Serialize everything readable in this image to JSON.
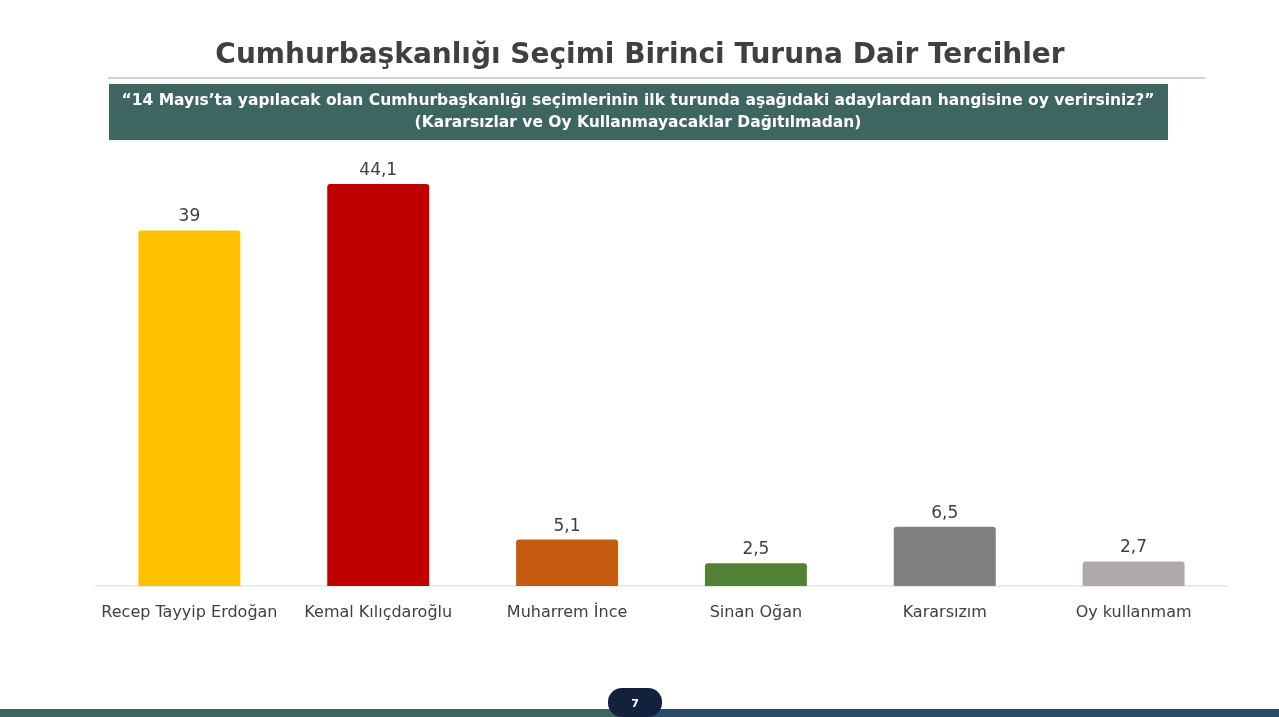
{
  "chart_data": {
    "type": "bar",
    "title": "Cumhurbaşkanlığı Seçimi Birinci Turuna Dair Tercihler",
    "subtitle": "“14 Mayıs’ta yapılacak olan Cumhurbaşkanlığı seçimlerinin ilk turunda aşağıdaki adaylardan hangisine oy verirsiniz?”\n(Kararsızlar ve Oy Kullanmayacaklar Dağıtılmadan)",
    "categories": [
      "Recep Tayyip Erdoğan",
      "Kemal Kılıçdaroğlu",
      "Muharrem İnce",
      "Sinan Oğan",
      "Kararsızım",
      "Oy kullanmam"
    ],
    "values": [
      39,
      44.1,
      5.1,
      2.5,
      6.5,
      2.7
    ],
    "colors": [
      "#ffc000",
      "#c00000",
      "#c55a11",
      "#548235",
      "#808080",
      "#aeaaaa"
    ],
    "value_labels": [
      "39",
      "44,1",
      "5,1",
      "2,5",
      "6,5",
      "2,7"
    ],
    "annotations": [
      "7"
    ]
  }
}
